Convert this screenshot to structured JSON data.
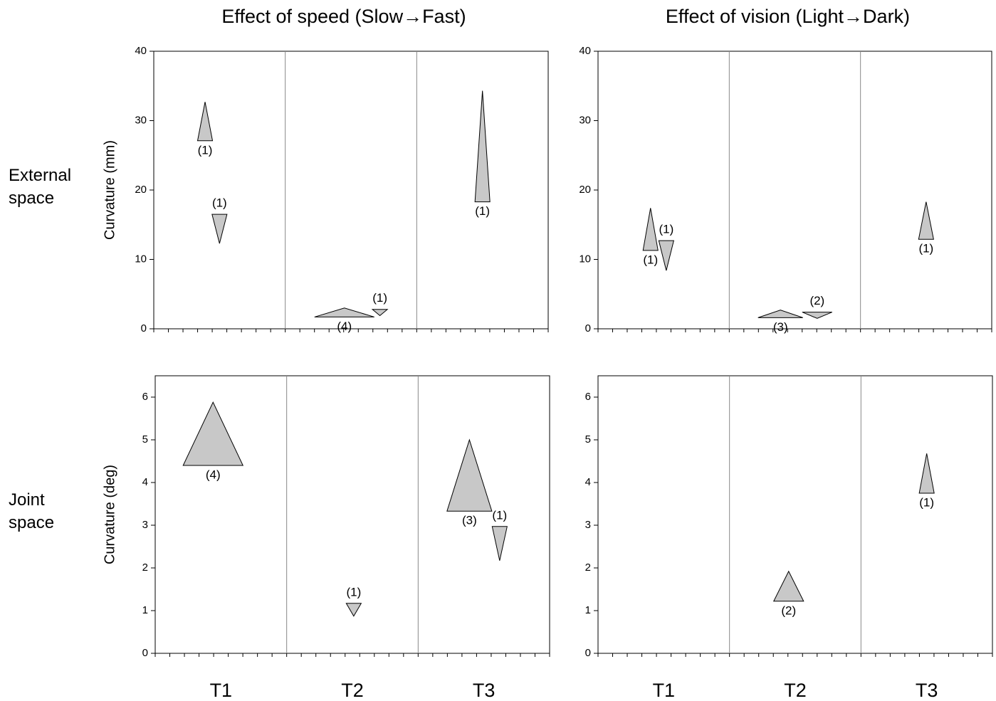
{
  "chart_data": [
    {
      "type": "triangle",
      "title": "Effect of speed (Slow→Fast)",
      "row_label": "External space",
      "ylabel": "Curvature (mm)",
      "xlim": [
        0.5,
        3.5
      ],
      "ylim": [
        0,
        40
      ],
      "yticks": [
        0,
        10,
        20,
        30,
        40
      ],
      "color": "#c8c8c8",
      "triangles": [
        {
          "x": 0.89,
          "from": 27.1,
          "to": 32.7,
          "n": 1,
          "label": "(1)"
        },
        {
          "x": 1.0,
          "from": 16.5,
          "to": 12.3,
          "n": 1,
          "label": "(1)"
        },
        {
          "x": 1.95,
          "from": 1.7,
          "to": 3.0,
          "n": 4,
          "label": "(4)"
        },
        {
          "x": 2.22,
          "from": 2.8,
          "to": 1.9,
          "n": 1,
          "label": "(1)"
        },
        {
          "x": 3.0,
          "from": 18.3,
          "to": 34.3,
          "n": 1,
          "label": "(1)"
        }
      ]
    },
    {
      "type": "triangle",
      "title": "Effect of vision (Light→Dark)",
      "xlim": [
        0.5,
        3.5
      ],
      "ylim": [
        0,
        40
      ],
      "yticks": [
        0,
        10,
        20,
        30,
        40
      ],
      "color": "#c8c8c8",
      "triangles": [
        {
          "x": 0.9,
          "from": 11.3,
          "to": 17.4,
          "n": 1,
          "label": "(1)"
        },
        {
          "x": 1.02,
          "from": 12.7,
          "to": 8.4,
          "n": 1,
          "label": "(1)"
        },
        {
          "x": 1.89,
          "from": 1.6,
          "to": 2.7,
          "n": 3,
          "label": "(3)"
        },
        {
          "x": 2.17,
          "from": 2.4,
          "to": 1.5,
          "n": 2,
          "label": "(2)"
        },
        {
          "x": 3.0,
          "from": 12.9,
          "to": 18.3,
          "n": 1,
          "label": "(1)"
        }
      ]
    },
    {
      "type": "triangle",
      "row_label": "Joint space",
      "ylabel": "Curvature (deg)",
      "categories": [
        "T1",
        "T2",
        "T3"
      ],
      "xlim": [
        0.5,
        3.5
      ],
      "ylim": [
        0,
        6.5
      ],
      "yticks": [
        0,
        1,
        2,
        3,
        4,
        5,
        6
      ],
      "color": "#c8c8c8",
      "triangles": [
        {
          "x": 0.94,
          "from": 4.4,
          "to": 5.88,
          "n": 4,
          "label": "(4)"
        },
        {
          "x": 2.01,
          "from": 1.17,
          "to": 0.87,
          "n": 1,
          "label": "(1)"
        },
        {
          "x": 2.89,
          "from": 3.33,
          "to": 5.0,
          "n": 3,
          "label": "(3)"
        },
        {
          "x": 3.12,
          "from": 2.97,
          "to": 2.17,
          "n": 1,
          "label": "(1)"
        }
      ]
    },
    {
      "type": "triangle",
      "categories": [
        "T1",
        "T2",
        "T3"
      ],
      "xlim": [
        0.5,
        3.5
      ],
      "ylim": [
        0,
        6.5
      ],
      "yticks": [
        0,
        1,
        2,
        3,
        4,
        5,
        6
      ],
      "color": "#c8c8c8",
      "triangles": [
        {
          "x": 1.95,
          "from": 1.22,
          "to": 1.92,
          "n": 2,
          "label": "(2)"
        },
        {
          "x": 3.0,
          "from": 3.75,
          "to": 4.68,
          "n": 1,
          "label": "(1)"
        }
      ]
    }
  ]
}
